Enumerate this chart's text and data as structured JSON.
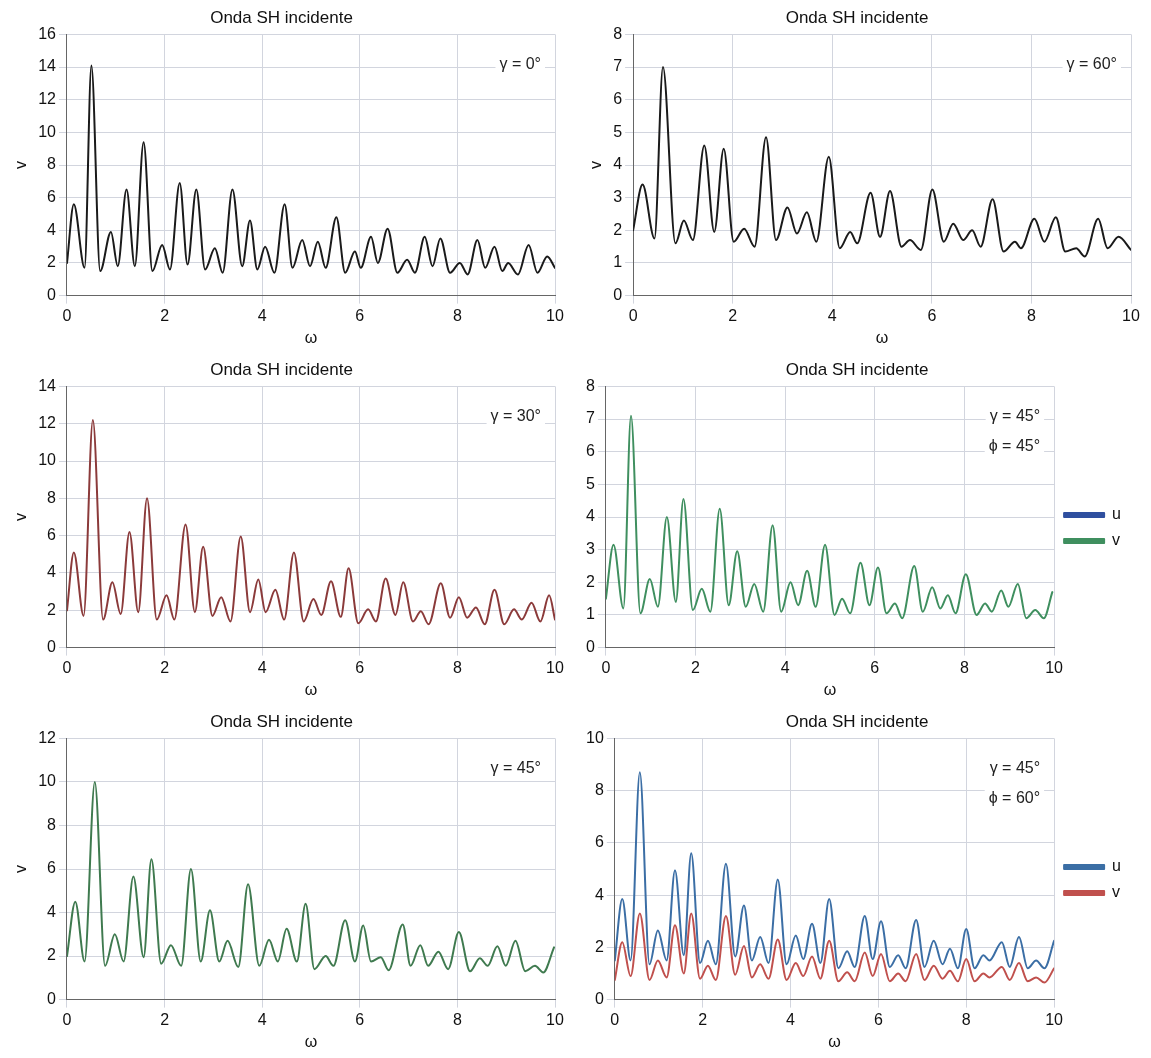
{
  "chart_data": [
    {
      "type": "line",
      "title": "Onda SH incidente",
      "xlabel": "ω",
      "ylabel": "v",
      "annotations": [
        "γ = 0°"
      ],
      "xlim": [
        0,
        10
      ],
      "xticks": [
        0,
        2,
        4,
        6,
        8,
        10
      ],
      "ylim": [
        0,
        16
      ],
      "yticks": [
        0,
        2,
        4,
        6,
        8,
        10,
        12,
        14,
        16
      ],
      "grid": true,
      "legend": false,
      "marker": "none",
      "x": [
        0,
        0.14,
        0.36,
        0.5,
        0.68,
        0.9,
        1.04,
        1.22,
        1.39,
        1.57,
        1.75,
        1.95,
        2.11,
        2.31,
        2.47,
        2.65,
        2.83,
        3.03,
        3.19,
        3.39,
        3.59,
        3.75,
        3.9,
        4.06,
        4.25,
        4.46,
        4.62,
        4.82,
        4.98,
        5.14,
        5.3,
        5.52,
        5.7,
        5.9,
        6.02,
        6.23,
        6.37,
        6.57,
        6.77,
        6.97,
        7.13,
        7.33,
        7.49,
        7.65,
        7.85,
        8.05,
        8.21,
        8.41,
        8.57,
        8.76,
        8.92,
        9.04,
        9.24,
        9.46,
        9.64,
        9.84,
        10
      ],
      "series": [
        {
          "color": "#1a1a1a",
          "values": [
            2.0,
            5.6,
            1.7,
            14.1,
            1.5,
            3.9,
            1.8,
            6.5,
            1.8,
            9.4,
            1.5,
            3.1,
            1.6,
            6.9,
            1.9,
            6.5,
            1.6,
            2.9,
            1.4,
            6.5,
            1.8,
            4.6,
            1.6,
            3.0,
            1.4,
            5.6,
            1.7,
            3.4,
            1.8,
            3.3,
            1.7,
            4.8,
            1.4,
            2.7,
            1.7,
            3.6,
            2.0,
            4.1,
            1.4,
            2.2,
            1.4,
            3.6,
            1.8,
            3.5,
            1.4,
            2.0,
            1.3,
            3.4,
            1.7,
            3.0,
            1.5,
            2.0,
            1.3,
            3.1,
            1.4,
            2.4,
            1.7
          ]
        }
      ]
    },
    {
      "type": "line",
      "title": "Onda SH incidente",
      "xlabel": "ω",
      "ylabel": "v",
      "annotations": [
        "γ = 60°"
      ],
      "xlim": [
        0,
        10
      ],
      "xticks": [
        0,
        2,
        4,
        6,
        8,
        10
      ],
      "ylim": [
        0,
        8
      ],
      "yticks": [
        0,
        1,
        2,
        3,
        4,
        5,
        6,
        7,
        8
      ],
      "grid": true,
      "legend": false,
      "marker": "none",
      "x": [
        0,
        0.19,
        0.43,
        0.6,
        0.85,
        1.02,
        1.2,
        1.43,
        1.63,
        1.82,
        2.02,
        2.23,
        2.44,
        2.67,
        2.87,
        3.1,
        3.29,
        3.49,
        3.68,
        3.93,
        4.15,
        4.36,
        4.5,
        4.77,
        4.96,
        5.16,
        5.39,
        5.56,
        5.78,
        6.01,
        6.24,
        6.43,
        6.63,
        6.81,
        6.98,
        7.22,
        7.44,
        7.67,
        7.79,
        8.06,
        8.26,
        8.49,
        8.68,
        8.9,
        9.07,
        9.34,
        9.53,
        9.75,
        10
      ],
      "series": [
        {
          "color": "#1a1a1a",
          "values": [
            2.0,
            3.4,
            1.75,
            7.0,
            1.6,
            2.3,
            1.7,
            4.6,
            1.95,
            4.5,
            1.65,
            2.05,
            1.5,
            4.85,
            1.7,
            2.7,
            1.9,
            2.55,
            1.65,
            4.25,
            1.45,
            1.95,
            1.6,
            3.15,
            1.8,
            3.2,
            1.5,
            1.7,
            1.4,
            3.25,
            1.65,
            2.2,
            1.7,
            2.0,
            1.5,
            2.95,
            1.35,
            1.65,
            1.45,
            2.35,
            1.65,
            2.4,
            1.35,
            1.45,
            1.2,
            2.35,
            1.45,
            1.8,
            1.4
          ]
        }
      ]
    },
    {
      "type": "line",
      "title": "Onda SH incidente",
      "xlabel": "ω",
      "ylabel": "v",
      "annotations": [
        "γ = 30°"
      ],
      "xlim": [
        0,
        10
      ],
      "xticks": [
        0,
        2,
        4,
        6,
        8,
        10
      ],
      "ylim": [
        0,
        14
      ],
      "yticks": [
        0,
        2,
        4,
        6,
        8,
        10,
        12,
        14
      ],
      "grid": true,
      "legend": false,
      "marker": "none",
      "x": [
        0,
        0.14,
        0.34,
        0.53,
        0.74,
        0.93,
        1.1,
        1.28,
        1.46,
        1.64,
        1.84,
        2.04,
        2.2,
        2.43,
        2.62,
        2.79,
        2.98,
        3.16,
        3.35,
        3.56,
        3.75,
        3.92,
        4.07,
        4.27,
        4.45,
        4.65,
        4.85,
        5.05,
        5.21,
        5.41,
        5.61,
        5.77,
        5.97,
        6.17,
        6.33,
        6.53,
        6.73,
        6.89,
        7.09,
        7.25,
        7.41,
        7.66,
        7.85,
        8.03,
        8.2,
        8.38,
        8.56,
        8.76,
        8.96,
        9.16,
        9.32,
        9.52,
        9.7,
        9.88,
        10
      ],
      "series": [
        {
          "color": "#8b3a3a",
          "values": [
            2.0,
            5.1,
            1.7,
            12.2,
            1.5,
            3.5,
            1.8,
            6.2,
            1.9,
            8.0,
            1.5,
            2.8,
            1.5,
            6.6,
            1.9,
            5.4,
            1.7,
            2.7,
            1.4,
            5.95,
            1.9,
            3.65,
            1.9,
            3.1,
            1.5,
            5.1,
            1.4,
            2.6,
            1.75,
            3.55,
            1.65,
            4.25,
            1.3,
            2.05,
            1.4,
            3.7,
            1.75,
            3.5,
            1.4,
            1.95,
            1.25,
            3.45,
            1.6,
            2.7,
            1.6,
            2.15,
            1.25,
            3.1,
            1.25,
            2.05,
            1.5,
            2.4,
            1.4,
            2.8,
            1.5
          ]
        }
      ]
    },
    {
      "type": "line",
      "title": "Onda SH incidente",
      "xlabel": "ω",
      "annotations": [
        "γ = 45°",
        "ϕ = 45°"
      ],
      "xlim": [
        0,
        10
      ],
      "xticks": [
        0,
        2,
        4,
        6,
        8,
        10
      ],
      "ylim": [
        0,
        8
      ],
      "yticks": [
        0,
        1,
        2,
        3,
        4,
        5,
        6,
        7,
        8
      ],
      "grid": true,
      "legend": "right",
      "marker": "none",
      "x": [
        0,
        0.17,
        0.39,
        0.56,
        0.77,
        0.98,
        1.16,
        1.36,
        1.56,
        1.73,
        1.94,
        2.14,
        2.33,
        2.54,
        2.74,
        2.93,
        3.12,
        3.31,
        3.51,
        3.72,
        3.91,
        4.12,
        4.29,
        4.49,
        4.68,
        4.89,
        5.1,
        5.27,
        5.45,
        5.68,
        5.88,
        6.07,
        6.26,
        6.45,
        6.61,
        6.88,
        7.07,
        7.28,
        7.46,
        7.63,
        7.8,
        8.03,
        8.27,
        8.46,
        8.61,
        8.82,
        8.98,
        9.19,
        9.38,
        9.58,
        9.77,
        9.96
      ],
      "series": [
        {
          "name": "u",
          "color": "#2f4f9f",
          "values": [
            null,
            null,
            null,
            null,
            null,
            null,
            null,
            null,
            null,
            null,
            null,
            null,
            null,
            null,
            null,
            null,
            null,
            null,
            null,
            null,
            null,
            null,
            null,
            null,
            null,
            null,
            null,
            null,
            null,
            null,
            null,
            null,
            null,
            null,
            null,
            null,
            null,
            null,
            null,
            null,
            null,
            null,
            null,
            null,
            null,
            null,
            null,
            null,
            null,
            null,
            null,
            null
          ]
        },
        {
          "name": "v",
          "color": "#3f8f5f",
          "values": [
            1.5,
            3.15,
            1.2,
            7.1,
            1.05,
            2.1,
            1.25,
            4.0,
            1.4,
            4.55,
            1.15,
            1.8,
            1.1,
            4.25,
            1.3,
            2.95,
            1.25,
            1.95,
            1.1,
            3.75,
            1.1,
            2.0,
            1.3,
            2.35,
            1.25,
            3.15,
            1.0,
            1.5,
            1.05,
            2.6,
            1.3,
            2.45,
            1.05,
            1.35,
            0.9,
            2.5,
            1.1,
            1.85,
            1.2,
            1.6,
            1.05,
            2.25,
            1.0,
            1.35,
            1.1,
            1.75,
            1.25,
            1.95,
            0.9,
            1.15,
            0.9,
            1.7
          ]
        }
      ]
    },
    {
      "type": "line",
      "title": "Onda SH incidente",
      "xlabel": "ω",
      "ylabel": "v",
      "annotations": [
        "γ = 45°"
      ],
      "xlim": [
        0,
        10
      ],
      "xticks": [
        0,
        2,
        4,
        6,
        8,
        10
      ],
      "ylim": [
        0,
        12
      ],
      "yticks": [
        0,
        2,
        4,
        6,
        8,
        10,
        12
      ],
      "grid": true,
      "legend": false,
      "marker": "none",
      "x": [
        0,
        0.17,
        0.36,
        0.57,
        0.78,
        0.98,
        1.16,
        1.36,
        1.57,
        1.73,
        1.93,
        2.13,
        2.34,
        2.54,
        2.74,
        2.93,
        3.12,
        3.29,
        3.51,
        3.71,
        3.94,
        4.14,
        4.32,
        4.5,
        4.71,
        4.89,
        5.07,
        5.3,
        5.46,
        5.7,
        5.9,
        6.07,
        6.23,
        6.43,
        6.59,
        6.88,
        7.04,
        7.24,
        7.4,
        7.61,
        7.81,
        8.03,
        8.26,
        8.46,
        8.62,
        8.82,
        8.99,
        9.19,
        9.39,
        9.59,
        9.76,
        9.98
      ],
      "series": [
        {
          "color": "#3f7a4f",
          "values": [
            2.0,
            4.5,
            1.75,
            10.0,
            1.55,
            3.0,
            1.75,
            5.65,
            1.95,
            6.45,
            1.65,
            2.5,
            1.55,
            6.0,
            1.75,
            4.1,
            1.75,
            2.7,
            1.5,
            5.3,
            1.55,
            2.75,
            1.75,
            3.25,
            1.75,
            4.4,
            1.4,
            2.0,
            1.55,
            3.65,
            1.75,
            3.4,
            1.75,
            1.95,
            1.35,
            3.45,
            1.55,
            2.5,
            1.55,
            2.2,
            1.4,
            3.1,
            1.3,
            1.9,
            1.55,
            2.45,
            1.55,
            2.7,
            1.3,
            1.55,
            1.25,
            2.4
          ]
        }
      ]
    },
    {
      "type": "line",
      "title": "Onda SH incidente",
      "xlabel": "ω",
      "annotations": [
        "γ = 45°",
        "ϕ = 60°"
      ],
      "xlim": [
        0,
        10
      ],
      "xticks": [
        0,
        2,
        4,
        6,
        8,
        10
      ],
      "ylim": [
        0,
        10
      ],
      "yticks": [
        0,
        2,
        4,
        6,
        8,
        10
      ],
      "grid": true,
      "legend": "right",
      "marker": "none",
      "x": [
        0,
        0.17,
        0.36,
        0.57,
        0.79,
        0.98,
        1.18,
        1.37,
        1.57,
        1.74,
        1.94,
        2.12,
        2.3,
        2.53,
        2.74,
        2.94,
        3.12,
        3.31,
        3.5,
        3.71,
        3.91,
        4.12,
        4.29,
        4.49,
        4.68,
        4.88,
        5.09,
        5.29,
        5.46,
        5.69,
        5.87,
        6.06,
        6.26,
        6.45,
        6.62,
        6.86,
        7.05,
        7.26,
        7.46,
        7.63,
        7.81,
        8.0,
        8.19,
        8.39,
        8.53,
        8.81,
        8.99,
        9.2,
        9.4,
        9.59,
        9.78,
        10
      ],
      "series": [
        {
          "name": "u",
          "color": "#3b6ea5",
          "values": [
            1.5,
            3.85,
            1.5,
            8.7,
            1.35,
            2.65,
            1.5,
            4.95,
            1.7,
            5.6,
            1.4,
            2.25,
            1.35,
            5.2,
            1.65,
            3.6,
            1.5,
            2.4,
            1.4,
            4.6,
            1.35,
            2.45,
            1.55,
            2.9,
            1.4,
            3.85,
            1.2,
            1.85,
            1.25,
            3.2,
            1.55,
            3.0,
            1.25,
            1.7,
            1.2,
            3.05,
            1.25,
            2.25,
            1.35,
            1.95,
            1.2,
            2.7,
            1.2,
            1.7,
            1.5,
            2.2,
            1.25,
            2.4,
            1.2,
            1.5,
            1.2,
            2.25
          ]
        },
        {
          "name": "v",
          "color": "#c0504d",
          "values": [
            0.75,
            2.2,
            0.9,
            3.3,
            0.75,
            1.5,
            0.85,
            2.85,
            1.0,
            3.3,
            0.8,
            1.3,
            0.75,
            3.2,
            0.95,
            2.05,
            0.85,
            1.35,
            0.8,
            2.3,
            0.75,
            1.4,
            0.9,
            1.65,
            0.8,
            2.25,
            0.7,
            1.05,
            0.7,
            1.8,
            0.9,
            1.75,
            0.7,
            1.0,
            0.7,
            1.75,
            0.75,
            1.3,
            0.8,
            1.1,
            0.7,
            1.55,
            0.7,
            1.0,
            0.85,
            1.25,
            0.75,
            1.4,
            0.7,
            0.85,
            0.65,
            1.2
          ]
        }
      ]
    }
  ]
}
